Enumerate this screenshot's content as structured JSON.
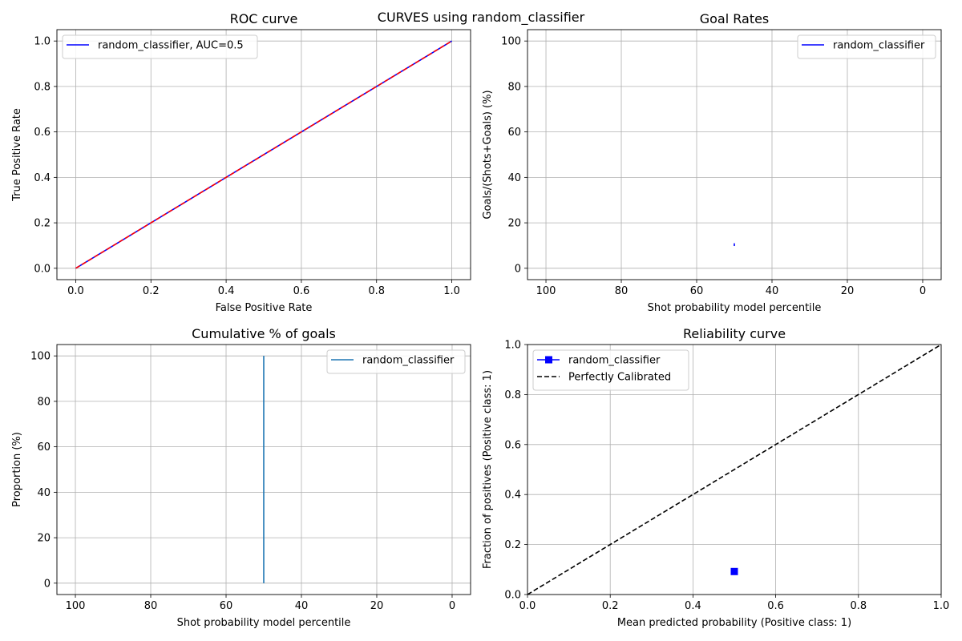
{
  "figure": {
    "suptitle": "CURVES using random_classifier"
  },
  "chart_data": [
    {
      "id": "roc",
      "type": "line",
      "title": "ROC curve",
      "xlabel": "False Positive Rate",
      "ylabel": "True Positive Rate",
      "xlim": [
        -0.05,
        1.05
      ],
      "ylim": [
        -0.05,
        1.05
      ],
      "x_ticks": [
        0.0,
        0.2,
        0.4,
        0.6,
        0.8,
        1.0
      ],
      "x_tick_labels": [
        "0.0",
        "0.2",
        "0.4",
        "0.6",
        "0.8",
        "1.0"
      ],
      "y_ticks": [
        0.0,
        0.2,
        0.4,
        0.6,
        0.8,
        1.0
      ],
      "y_tick_labels": [
        "0.0",
        "0.2",
        "0.4",
        "0.6",
        "0.8",
        "1.0"
      ],
      "grid": true,
      "legend": "top-left",
      "series": [
        {
          "name": "random_classifier, AUC=0.5",
          "color": "#0000ff",
          "style": "solid",
          "x": [
            0,
            1
          ],
          "y": [
            0,
            1
          ]
        },
        {
          "color": "#ff0000",
          "style": "dashed",
          "x": [
            0,
            1
          ],
          "y": [
            0,
            1
          ]
        }
      ]
    },
    {
      "id": "goal_rates",
      "type": "line",
      "title": "Goal Rates",
      "xlabel": "Shot probability model percentile",
      "ylabel": "Goals/(Shots+Goals) (%)",
      "xlim": [
        104.9,
        -4.9
      ],
      "ylim": [
        -5,
        105
      ],
      "x_ticks": [
        100,
        80,
        60,
        40,
        20,
        0
      ],
      "x_tick_labels": [
        "100",
        "80",
        "60",
        "40",
        "20",
        "0"
      ],
      "y_ticks": [
        0,
        20,
        40,
        60,
        80,
        100
      ],
      "y_tick_labels": [
        "0",
        "20",
        "40",
        "60",
        "80",
        "100"
      ],
      "grid": true,
      "legend": "top-right",
      "series": [
        {
          "name": "random_classifier",
          "color": "#0000ff",
          "style": "solid",
          "x": [
            50,
            50
          ],
          "y": [
            9.8,
            11.0
          ]
        }
      ]
    },
    {
      "id": "cumulative",
      "type": "line",
      "title": "Cumulative % of goals",
      "xlabel": "Shot probability model percentile",
      "ylabel": "Proportion (%)",
      "xlim": [
        104.9,
        -4.9
      ],
      "ylim": [
        -5,
        105
      ],
      "x_ticks": [
        100,
        80,
        60,
        40,
        20,
        0
      ],
      "x_tick_labels": [
        "100",
        "80",
        "60",
        "40",
        "20",
        "0"
      ],
      "y_ticks": [
        0,
        20,
        40,
        60,
        80,
        100
      ],
      "y_tick_labels": [
        "0",
        "20",
        "40",
        "60",
        "80",
        "100"
      ],
      "grid": true,
      "legend": "top-right",
      "series": [
        {
          "name": "random_classifier",
          "color": "#1f77b4",
          "style": "solid",
          "x": [
            50,
            50
          ],
          "y": [
            0,
            100
          ]
        }
      ]
    },
    {
      "id": "reliability",
      "type": "line",
      "title": "Reliability curve",
      "xlabel": "Mean predicted probability (Positive class: 1)",
      "ylabel": "Fraction of positives (Positive class: 1)",
      "xlim": [
        0,
        1
      ],
      "ylim": [
        0,
        1
      ],
      "x_ticks": [
        0.0,
        0.2,
        0.4,
        0.6,
        0.8,
        1.0
      ],
      "x_tick_labels": [
        "0.0",
        "0.2",
        "0.4",
        "0.6",
        "0.8",
        "1.0"
      ],
      "y_ticks": [
        0.0,
        0.2,
        0.4,
        0.6,
        0.8,
        1.0
      ],
      "y_tick_labels": [
        "0.0",
        "0.2",
        "0.4",
        "0.6",
        "0.8",
        "1.0"
      ],
      "grid": true,
      "legend": "top-left",
      "series": [
        {
          "name": "random_classifier",
          "color": "#0000ff",
          "style": "solid",
          "marker": "square",
          "x": [
            0.5
          ],
          "y": [
            0.092
          ]
        },
        {
          "name": "Perfectly Calibrated",
          "color": "#000000",
          "style": "dashed",
          "x": [
            0,
            1
          ],
          "y": [
            0,
            1
          ]
        }
      ]
    }
  ]
}
